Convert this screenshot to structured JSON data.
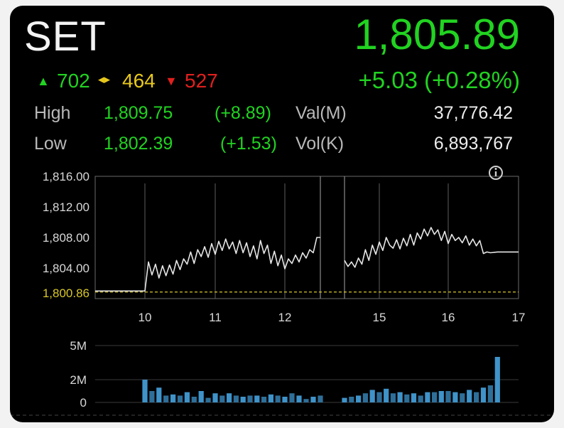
{
  "index": {
    "symbol": "SET",
    "price": "1,805.89",
    "change": "+5.03 (+0.28%)",
    "advance": "702",
    "unchanged": "464",
    "decline": "527",
    "high_label": "High",
    "high_value": "1,809.75",
    "high_change": "(+8.89)",
    "low_label": "Low",
    "low_value": "1,802.39",
    "low_change": "(+1.53)",
    "val_label": "Val(M)",
    "val_value": "37,776.42",
    "vol_label": "Vol(K)",
    "vol_value": "6,893,767"
  },
  "icons": {
    "up": "triangle-up-icon",
    "unchanged": "diamond-arrows-icon",
    "down": "triangle-down-icon",
    "info": "info-icon"
  },
  "colors": {
    "up": "#21d321",
    "unchanged": "#e8c81c",
    "down": "#e0201e",
    "volume": "#3f93c9",
    "previous_close": "#d8c62a"
  },
  "chart_data": [
    {
      "type": "line",
      "x_ticks": [
        "10",
        "11",
        "12",
        "15",
        "16",
        "17"
      ],
      "y_ticks": [
        "1,816.00",
        "1,812.00",
        "1,808.00",
        "1,804.00"
      ],
      "ylim": [
        1800,
        1816
      ],
      "previous_close": 1800.86,
      "previous_close_label": "1,800.86",
      "sessions": [
        {
          "x": [
            9.4,
            9.5,
            9.6,
            9.7,
            9.8,
            9.9,
            10.0,
            10.05,
            10.1,
            10.15,
            10.2,
            10.25,
            10.3,
            10.35,
            10.4,
            10.45,
            10.5,
            10.55,
            10.6,
            10.65,
            10.7,
            10.75,
            10.8,
            10.85,
            10.9,
            10.95,
            11.0,
            11.05,
            11.1,
            11.15,
            11.2,
            11.25,
            11.3,
            11.35,
            11.4,
            11.45,
            11.5,
            11.55,
            11.6,
            11.65,
            11.7,
            11.75,
            11.8,
            11.85,
            11.9,
            11.95,
            12.0,
            12.05,
            12.1,
            12.15,
            12.2,
            12.25,
            12.3,
            12.35,
            12.4,
            12.45,
            12.5
          ],
          "y": [
            1801.0,
            1801.0,
            1801.0,
            1801.0,
            1801.0,
            1801.0,
            1801.0,
            1804.8,
            1803.1,
            1804.5,
            1802.7,
            1804.3,
            1803.0,
            1804.4,
            1803.2,
            1805.0,
            1803.8,
            1805.2,
            1804.5,
            1806.1,
            1804.6,
            1806.4,
            1805.5,
            1806.8,
            1805.4,
            1807.2,
            1805.8,
            1807.5,
            1806.3,
            1807.8,
            1806.5,
            1807.4,
            1805.9,
            1807.6,
            1806.0,
            1807.3,
            1805.5,
            1806.9,
            1805.2,
            1807.6,
            1805.9,
            1807.0,
            1804.6,
            1806.2,
            1804.3,
            1805.7,
            1803.9,
            1805.2,
            1804.6,
            1805.7,
            1804.8,
            1806.0,
            1805.3,
            1806.4,
            1806.0,
            1808.0,
            1808.0
          ]
        },
        {
          "x": [
            14.5,
            14.55,
            14.6,
            14.65,
            14.7,
            14.75,
            14.8,
            14.85,
            14.9,
            14.95,
            15.0,
            15.05,
            15.1,
            15.15,
            15.2,
            15.25,
            15.3,
            15.35,
            15.4,
            15.45,
            15.5,
            15.55,
            15.6,
            15.65,
            15.7,
            15.75,
            15.8,
            15.85,
            15.9,
            15.95,
            16.0,
            16.05,
            16.1,
            16.15,
            16.2,
            16.25,
            16.3,
            16.35,
            16.4,
            16.45,
            16.5,
            16.55,
            16.6,
            16.7,
            16.8,
            16.9,
            17.0
          ],
          "y": [
            1805.0,
            1804.2,
            1804.8,
            1804.1,
            1805.3,
            1804.5,
            1806.4,
            1805.0,
            1807.0,
            1805.8,
            1807.4,
            1806.3,
            1808.0,
            1807.0,
            1806.6,
            1807.7,
            1806.5,
            1807.9,
            1806.9,
            1808.4,
            1807.0,
            1808.6,
            1807.8,
            1809.1,
            1808.2,
            1809.3,
            1808.4,
            1809.0,
            1807.6,
            1808.8,
            1807.2,
            1808.4,
            1807.6,
            1808.0,
            1807.3,
            1808.2,
            1807.0,
            1807.8,
            1806.9,
            1807.6,
            1805.9,
            1806.1,
            1806.0,
            1806.1,
            1806.1,
            1806.1,
            1806.1
          ]
        }
      ]
    },
    {
      "type": "bar",
      "y_ticks": [
        "5M",
        "2M",
        "0"
      ],
      "ylim": [
        0,
        5
      ],
      "x": [
        10.0,
        10.1,
        10.2,
        10.3,
        10.4,
        10.5,
        10.6,
        10.7,
        10.8,
        10.9,
        11.0,
        11.1,
        11.2,
        11.3,
        11.4,
        11.5,
        11.6,
        11.7,
        11.8,
        11.9,
        12.0,
        12.1,
        12.2,
        12.3,
        12.4,
        12.5,
        14.5,
        14.6,
        14.7,
        14.8,
        14.9,
        15.0,
        15.1,
        15.2,
        15.3,
        15.4,
        15.5,
        15.6,
        15.7,
        15.8,
        15.9,
        16.0,
        16.1,
        16.2,
        16.3,
        16.4,
        16.5,
        16.6,
        16.7
      ],
      "values": [
        2.0,
        1.0,
        1.3,
        0.6,
        0.7,
        0.6,
        0.9,
        0.5,
        1.0,
        0.4,
        0.8,
        0.6,
        0.8,
        0.6,
        0.5,
        0.6,
        0.6,
        0.5,
        0.7,
        0.6,
        0.5,
        0.8,
        0.6,
        0.3,
        0.5,
        0.6,
        0.4,
        0.5,
        0.6,
        0.8,
        1.1,
        0.9,
        1.2,
        0.8,
        0.9,
        0.7,
        0.8,
        0.6,
        0.9,
        0.9,
        1.0,
        1.0,
        0.9,
        0.8,
        1.1,
        0.9,
        1.3,
        1.5,
        4.0
      ]
    }
  ]
}
